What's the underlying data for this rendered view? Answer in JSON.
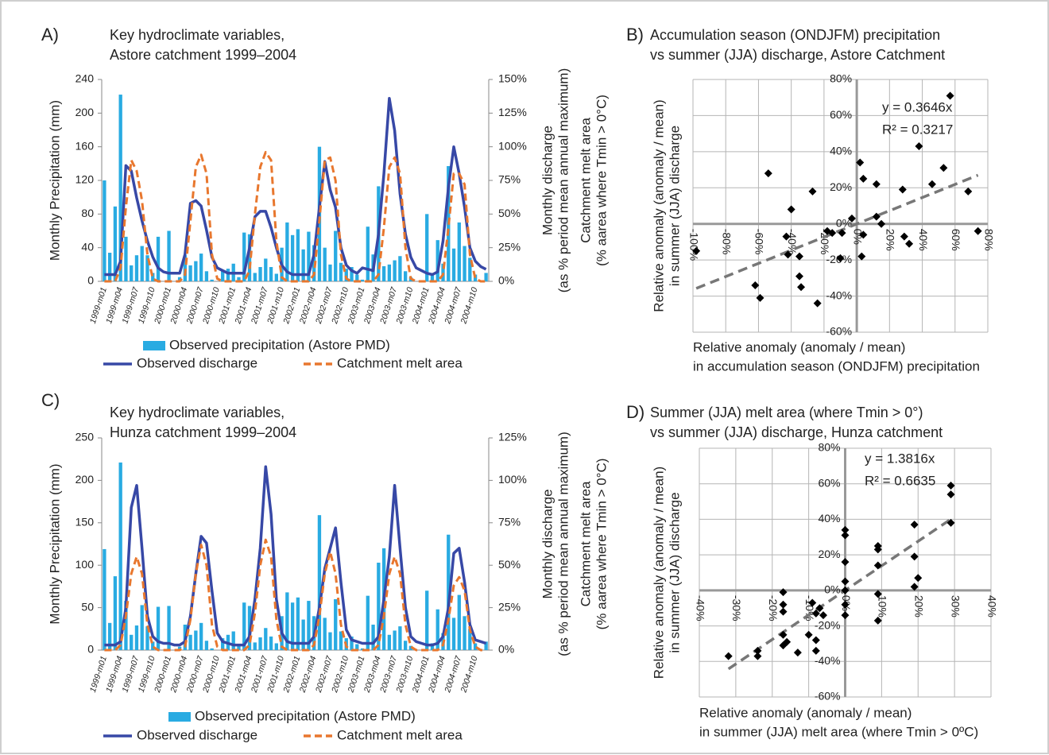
{
  "chart_data": [
    {
      "type": "combo",
      "panel": "A)",
      "title": [
        "Key hydroclimate variables,",
        "Astore catchment 1999–2004"
      ],
      "ylabel": "Monthly Precipitation (mm)",
      "y2label": [
        [
          "Monthly discharge",
          "(as % period mean annual maximum)"
        ],
        [
          "Catchment melt area",
          "(% aarea where Tmin > 0°C)"
        ]
      ],
      "categories": [
        "1999-m01",
        null,
        null,
        "1999-m04",
        null,
        null,
        "1999-m07",
        null,
        null,
        "1999-m10",
        null,
        null,
        "2000-m01",
        null,
        null,
        "2000-m04",
        null,
        null,
        "2000-m07",
        null,
        null,
        "2000-m10",
        null,
        null,
        "2001-m01",
        null,
        null,
        "2001-m04",
        null,
        null,
        "2001-m07",
        null,
        null,
        "2001-m10",
        null,
        null,
        "2002-m01",
        null,
        null,
        "2002-m04",
        null,
        null,
        "2002-m07",
        null,
        null,
        "2002-m10",
        null,
        null,
        "2003-m01",
        null,
        null,
        "2003-m04",
        null,
        null,
        "2003-m07",
        null,
        null,
        "2003-m10",
        null,
        null,
        "2004-m01",
        null,
        null,
        "2004-m04",
        null,
        null,
        "2004-m07",
        null,
        null,
        "2004-m10",
        null,
        null
      ],
      "ylim": [
        0,
        240
      ],
      "yticks": [
        0,
        40,
        80,
        120,
        160,
        200,
        240
      ],
      "y2lim": [
        0,
        150
      ],
      "y2ticks": [
        {
          "value": 0,
          "label": "0%"
        },
        {
          "value": 25,
          "label": "25%"
        },
        {
          "value": 50,
          "label": "50%"
        },
        {
          "value": 75,
          "label": "75%"
        },
        {
          "value": 100,
          "label": "100%"
        },
        {
          "value": 125,
          "label": "125%"
        },
        {
          "value": 150,
          "label": "150%"
        }
      ],
      "series": [
        {
          "name": "Observed precipitation (Astore PMD)",
          "type": "bar",
          "color": "#29abe2",
          "values": [
            120,
            34,
            89,
            222,
            53,
            19,
            31,
            42,
            31,
            10,
            53,
            0,
            60,
            0,
            5,
            31,
            19,
            24,
            33,
            12,
            2,
            0,
            13,
            15,
            21,
            5,
            58,
            56,
            10,
            17,
            27,
            17,
            9,
            40,
            70,
            55,
            62,
            38,
            59,
            43,
            160,
            40,
            20,
            60,
            22,
            15,
            17,
            8,
            2,
            65,
            32,
            113,
            18,
            20,
            25,
            30,
            12,
            5,
            0,
            0,
            80,
            8,
            49,
            21,
            137,
            39,
            70,
            42,
            28,
            8,
            0,
            10
          ]
        },
        {
          "name": "Observed discharge",
          "type": "line",
          "axis": "y2",
          "color": "#3748a6",
          "values": [
            5,
            5,
            5,
            15,
            86,
            82,
            62,
            45,
            30,
            18,
            10,
            7,
            6,
            6,
            6,
            20,
            58,
            60,
            56,
            38,
            18,
            10,
            8,
            6,
            6,
            6,
            6,
            25,
            48,
            52,
            52,
            40,
            25,
            12,
            7,
            5,
            5,
            5,
            5,
            20,
            55,
            89,
            68,
            55,
            25,
            12,
            8,
            6,
            10,
            9,
            8,
            35,
            80,
            136,
            112,
            65,
            35,
            18,
            10,
            8,
            6,
            5,
            7,
            30,
            70,
            100,
            80,
            55,
            25,
            15,
            11,
            9
          ]
        },
        {
          "name": "Catchment melt area",
          "type": "line",
          "axis": "y2",
          "style": "dashed",
          "color": "#e8772e",
          "values": [
            0,
            0,
            0,
            10,
            55,
            90,
            82,
            60,
            20,
            2,
            0,
            0,
            0,
            0,
            0,
            5,
            45,
            85,
            94,
            80,
            20,
            2,
            0,
            0,
            0,
            0,
            0,
            8,
            50,
            85,
            96,
            90,
            30,
            3,
            0,
            0,
            0,
            0,
            0,
            5,
            45,
            90,
            92,
            75,
            20,
            2,
            0,
            0,
            0,
            0,
            0,
            5,
            40,
            85,
            92,
            80,
            25,
            2,
            0,
            0,
            0,
            0,
            0,
            5,
            40,
            80,
            80,
            72,
            20,
            2,
            0,
            0
          ]
        }
      ]
    },
    {
      "type": "scatter",
      "panel": "B)",
      "title": [
        "Accumulation season (ONDJFM) precipitation",
        "vs summer (JJA) discharge, Astore Catchment"
      ],
      "ylabel": [
        "Relative anomaly (anomaly / mean)",
        "in summer (JJA) discharge"
      ],
      "xlabel": [
        "Relative anomaly (anomaly / mean)",
        "in accumulation season (ONDJFM) precipitation"
      ],
      "xlim": [
        -100,
        80
      ],
      "xticks": [
        {
          "value": -100,
          "label": "-100%"
        },
        {
          "value": -80,
          "label": "-80%"
        },
        {
          "value": -60,
          "label": "-60%"
        },
        {
          "value": -40,
          "label": "-40%"
        },
        {
          "value": -20,
          "label": "-20%"
        },
        {
          "value": 0,
          "label": "0%"
        },
        {
          "value": 20,
          "label": "20%"
        },
        {
          "value": 40,
          "label": "40%"
        },
        {
          "value": 60,
          "label": "60%"
        },
        {
          "value": 80,
          "label": "80%"
        }
      ],
      "ylim": [
        -60,
        80
      ],
      "yticks": [
        {
          "value": -60,
          "label": "-60%"
        },
        {
          "value": -40,
          "label": "-40%"
        },
        {
          "value": -20,
          "label": "-20%"
        },
        {
          "value": 0,
          "label": "0%"
        },
        {
          "value": 20,
          "label": "20%"
        },
        {
          "value": 40,
          "label": "40%"
        },
        {
          "value": 60,
          "label": "60%"
        },
        {
          "value": 80,
          "label": "80%"
        }
      ],
      "grid": true,
      "color": "#000000",
      "x": [
        -98,
        -54,
        -62,
        -59,
        -40,
        -43,
        -42,
        -35,
        -35,
        -34,
        -27,
        -24,
        -18,
        -15,
        -10,
        -9,
        -3,
        2,
        4,
        3,
        4,
        12,
        12,
        15,
        28,
        29,
        32,
        38,
        46,
        53,
        57,
        68,
        74
      ],
      "y": [
        -15,
        28,
        -34,
        -41,
        8,
        -7,
        -17,
        -18,
        -29,
        -35,
        18,
        -44,
        -4,
        -5,
        -19,
        -5,
        3,
        34,
        25,
        -18,
        -6,
        22,
        4,
        0,
        19,
        -7,
        -11,
        43,
        22,
        31,
        71,
        18,
        -4
      ],
      "trendline": {
        "slope": 0.3646,
        "label": "y = 0.3646x",
        "r2_label": "R² = 0.3217",
        "color": "#777777"
      }
    },
    {
      "type": "combo",
      "panel": "C)",
      "title": [
        "Key hydroclimate variables,",
        "Hunza catchment 1999–2004"
      ],
      "ylabel": "Monthly Precipitation (mm)",
      "y2label": [
        [
          "Monthly discharge",
          "(as % period mean annual maximum)"
        ],
        [
          "Catchment melt area",
          "(% aarea where Tmin > 0°C)"
        ]
      ],
      "categories": [
        "1999-m01",
        null,
        null,
        "1999-m04",
        null,
        null,
        "1999-m07",
        null,
        null,
        "1999-m10",
        null,
        null,
        "2000-m01",
        null,
        null,
        "2000-m04",
        null,
        null,
        "2000-m07",
        null,
        null,
        "2000-m10",
        null,
        null,
        "2001-m01",
        null,
        null,
        "2001-m04",
        null,
        null,
        "2001-m07",
        null,
        null,
        "2001-m10",
        null,
        null,
        "2002-m01",
        null,
        null,
        "2002-m04",
        null,
        null,
        "2002-m07",
        null,
        null,
        "2002-m10",
        null,
        null,
        "2003-m01",
        null,
        null,
        "2003-m04",
        null,
        null,
        "2003-m07",
        null,
        null,
        "2003-m10",
        null,
        null,
        "2004-m01",
        null,
        null,
        "2004-m04",
        null,
        null,
        "2004-m07",
        null,
        null,
        "2004-m10",
        null,
        null
      ],
      "ylim": [
        0,
        250
      ],
      "yticks": [
        0,
        50,
        100,
        150,
        200,
        250
      ],
      "y2lim": [
        0,
        125
      ],
      "y2ticks": [
        {
          "value": 0,
          "label": "0%"
        },
        {
          "value": 25,
          "label": "25%"
        },
        {
          "value": 50,
          "label": "50%"
        },
        {
          "value": 75,
          "label": "75%"
        },
        {
          "value": 100,
          "label": "100%"
        },
        {
          "value": 125,
          "label": "125%"
        }
      ],
      "series": [
        {
          "name": "Observed precipitation (Astore PMD)",
          "type": "bar",
          "color": "#29abe2",
          "values": [
            119,
            32,
            87,
            221,
            58,
            18,
            29,
            53,
            28,
            10,
            51,
            0,
            52,
            0,
            4,
            30,
            18,
            23,
            32,
            11,
            2,
            0,
            14,
            18,
            22,
            5,
            56,
            52,
            9,
            15,
            26,
            16,
            8,
            40,
            68,
            56,
            62,
            36,
            58,
            40,
            159,
            38,
            21,
            60,
            22,
            14,
            16,
            7,
            2,
            64,
            30,
            103,
            120,
            18,
            23,
            28,
            11,
            5,
            0,
            0,
            70,
            8,
            48,
            20,
            136,
            38,
            65,
            40,
            25,
            8,
            0,
            10
          ]
        },
        {
          "name": "Observed discharge",
          "type": "line",
          "axis": "y2",
          "color": "#3748a6",
          "values": [
            3,
            3,
            3,
            5,
            25,
            84,
            97,
            60,
            20,
            8,
            5,
            4,
            4,
            3,
            3,
            5,
            20,
            45,
            67,
            63,
            35,
            10,
            5,
            4,
            3,
            3,
            3,
            8,
            30,
            60,
            108,
            80,
            30,
            10,
            5,
            4,
            4,
            4,
            4,
            8,
            25,
            48,
            60,
            72,
            40,
            12,
            6,
            5,
            4,
            4,
            4,
            8,
            30,
            55,
            97,
            60,
            25,
            8,
            5,
            4,
            3,
            3,
            4,
            8,
            25,
            57,
            60,
            40,
            15,
            6,
            5,
            4
          ]
        },
        {
          "name": "Catchment melt area",
          "type": "line",
          "axis": "y2",
          "style": "dashed",
          "color": "#e8772e",
          "values": [
            0,
            0,
            0,
            3,
            20,
            45,
            55,
            45,
            15,
            2,
            0,
            0,
            0,
            0,
            0,
            2,
            18,
            45,
            62,
            50,
            15,
            2,
            0,
            0,
            0,
            0,
            0,
            3,
            22,
            50,
            65,
            55,
            18,
            2,
            0,
            0,
            0,
            0,
            0,
            3,
            20,
            45,
            58,
            45,
            15,
            2,
            0,
            0,
            0,
            0,
            0,
            3,
            20,
            45,
            55,
            45,
            15,
            2,
            0,
            0,
            0,
            0,
            0,
            3,
            18,
            38,
            43,
            35,
            12,
            2,
            0,
            0
          ]
        }
      ]
    },
    {
      "type": "scatter",
      "panel": "D)",
      "title": [
        "Summer (JJA) melt area (where Tmin > 0°)",
        "vs summer (JJA) discharge, Hunza catchment"
      ],
      "ylabel": [
        "Relative anomaly (anomaly / mean)",
        "in summer (JJA) discharge"
      ],
      "xlabel": [
        "Relative anomaly (anomaly / mean)",
        "in summer (JJA) melt area (where Tmin > 0ºC)"
      ],
      "xlim": [
        -40,
        40
      ],
      "xticks": [
        {
          "value": -40,
          "label": "-40%"
        },
        {
          "value": -30,
          "label": "-30%"
        },
        {
          "value": -20,
          "label": "-20%"
        },
        {
          "value": -10,
          "label": "-10%"
        },
        {
          "value": 0,
          "label": "0%"
        },
        {
          "value": 10,
          "label": "10%"
        },
        {
          "value": 20,
          "label": "20%"
        },
        {
          "value": 30,
          "label": "30%"
        },
        {
          "value": 40,
          "label": "40%"
        }
      ],
      "ylim": [
        -60,
        80
      ],
      "yticks": [
        {
          "value": -60,
          "label": "-60%"
        },
        {
          "value": -40,
          "label": "-40%"
        },
        {
          "value": -20,
          "label": "-20%"
        },
        {
          "value": 0,
          "label": "0%"
        },
        {
          "value": 20,
          "label": "20%"
        },
        {
          "value": 40,
          "label": "40%"
        },
        {
          "value": 60,
          "label": "60%"
        },
        {
          "value": 80,
          "label": "80%"
        }
      ],
      "grid": true,
      "color": "#000000",
      "x": [
        -32,
        -24,
        -24,
        -17,
        -17,
        -17,
        -17,
        -17,
        -16,
        -13,
        -10,
        -9,
        -8,
        -8,
        -8,
        -7,
        -6,
        0,
        0,
        0,
        0,
        0,
        0,
        0,
        9,
        9,
        9,
        9,
        9,
        19,
        19,
        20,
        19,
        29,
        29,
        29
      ],
      "y": [
        -37,
        -37,
        -34,
        -1,
        -8,
        -12,
        -25,
        -31,
        -29,
        -35,
        -25,
        -7,
        -13,
        -28,
        -34,
        -10,
        -14,
        34,
        31,
        16,
        5,
        0,
        -8,
        -14,
        25,
        23,
        14,
        -2,
        -17,
        37,
        19,
        7,
        2,
        59,
        54,
        38
      ],
      "trendline": {
        "slope": 1.3816,
        "label": "y = 1.3816x",
        "r2_label": "R² = 0.6635",
        "color": "#777777"
      }
    }
  ]
}
